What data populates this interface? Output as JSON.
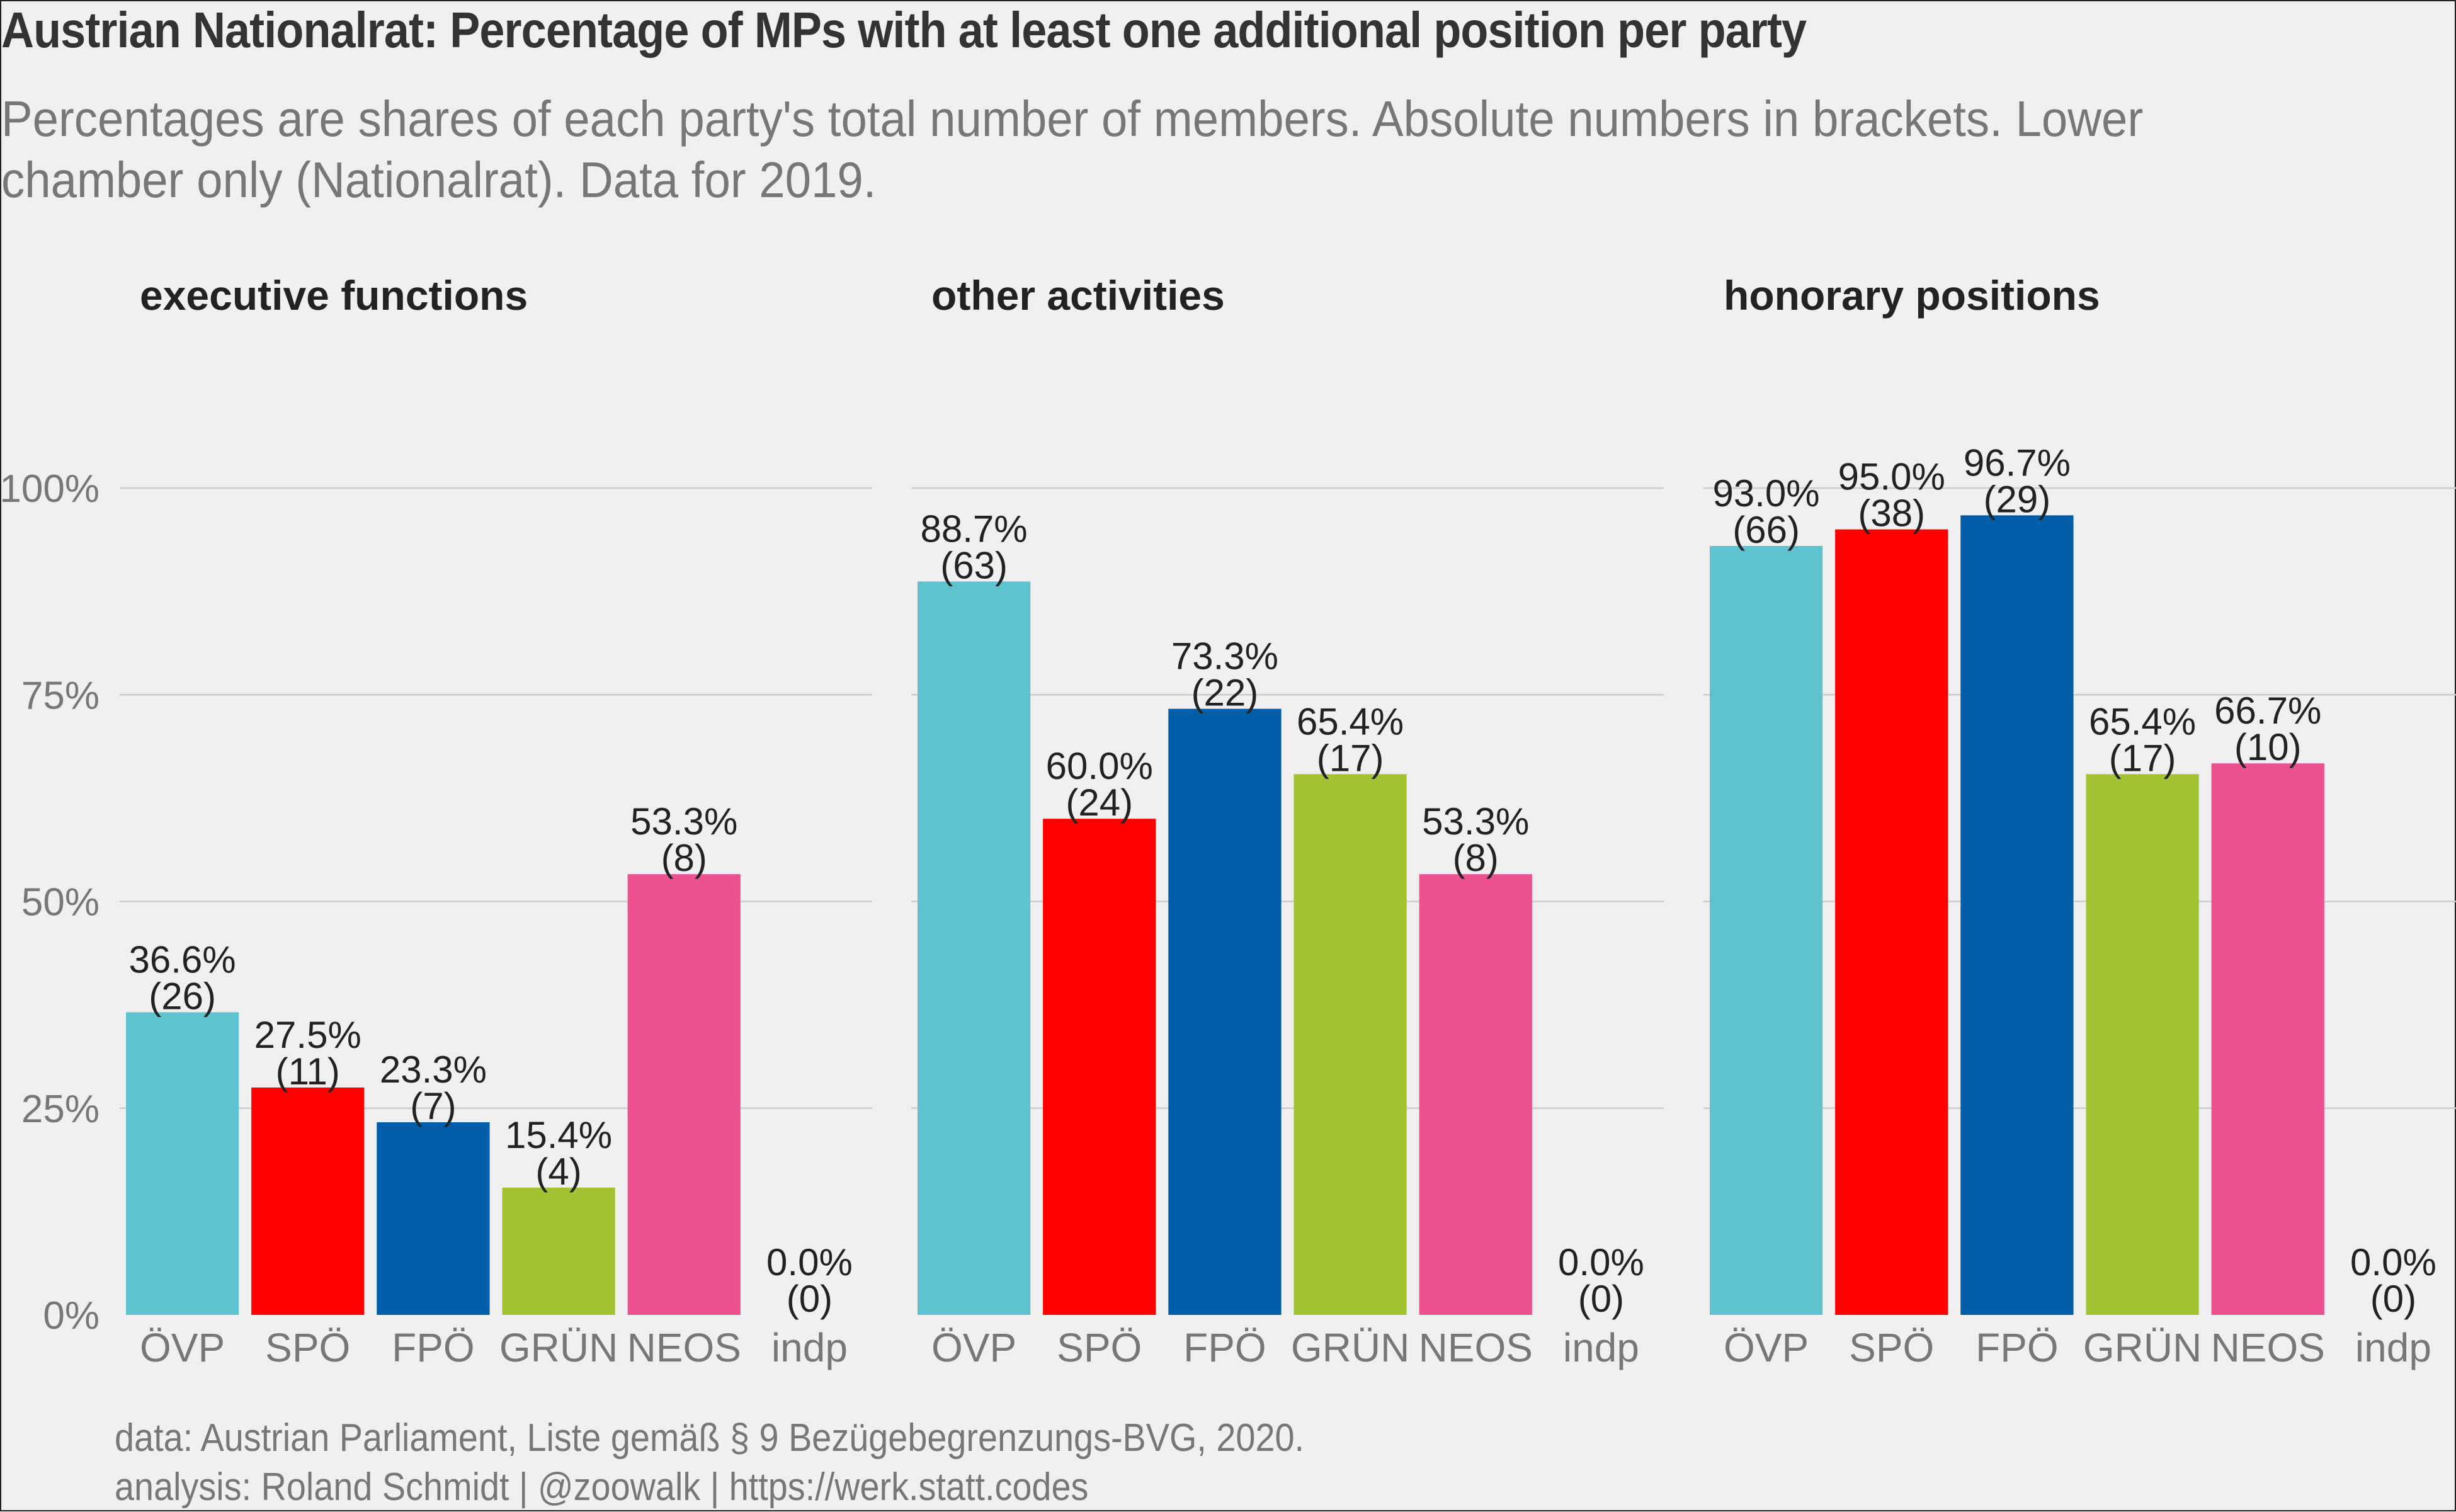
{
  "title": "Austrian Nationalrat: Percentage of MPs with at least one additional position per party",
  "subtitle": "Percentages are shares of each party's total number of members. Absolute numbers in brackets. Lower chamber only (Nationalrat). Data for 2019.",
  "caption": {
    "line1": "data: Austrian Parliament, Liste gemäß § 9 Bezügebegrenzungs-BVG, 2020.",
    "line2": "analysis: Roland Schmidt | @zoowalk | https://werk.statt.codes"
  },
  "colors": {
    "ÖVP": "#5fc2cf",
    "SPÖ": "#fe0000",
    "FPÖ": "#015da8",
    "GRÜN": "#a3c432",
    "NEOS": "#eb528f",
    "indp": "#888888"
  },
  "chart_data": {
    "type": "bar",
    "categories": [
      "ÖVP",
      "SPÖ",
      "FPÖ",
      "GRÜN",
      "NEOS",
      "indp"
    ],
    "ylim": [
      0,
      100
    ],
    "y_ticks": [
      {
        "value": 0,
        "label": "0%"
      },
      {
        "value": 25,
        "label": "25%"
      },
      {
        "value": 50,
        "label": "50%"
      },
      {
        "value": 75,
        "label": "75%"
      },
      {
        "value": 100,
        "label": "100%"
      }
    ],
    "grid": true,
    "legend": "none",
    "facets": [
      {
        "name": "executive functions",
        "values": [
          36.6,
          27.5,
          23.3,
          15.4,
          53.3,
          0.0
        ],
        "counts": [
          26,
          11,
          7,
          4,
          8,
          0
        ],
        "labels": [
          "36.6%",
          "27.5%",
          "23.3%",
          "15.4%",
          "53.3%",
          "0.0%"
        ],
        "count_labels": [
          "(26)",
          "(11)",
          "(7)",
          "(4)",
          "(8)",
          "(0)"
        ]
      },
      {
        "name": "other activities",
        "values": [
          88.7,
          60.0,
          73.3,
          65.4,
          53.3,
          0.0
        ],
        "counts": [
          63,
          24,
          22,
          17,
          8,
          0
        ],
        "labels": [
          "88.7%",
          "60.0%",
          "73.3%",
          "65.4%",
          "53.3%",
          "0.0%"
        ],
        "count_labels": [
          "(63)",
          "(24)",
          "(22)",
          "(17)",
          "(8)",
          "(0)"
        ]
      },
      {
        "name": "honorary positions",
        "values": [
          93.0,
          95.0,
          96.7,
          65.4,
          66.7,
          0.0
        ],
        "counts": [
          66,
          38,
          29,
          17,
          10,
          0
        ],
        "labels": [
          "93.0%",
          "95.0%",
          "96.7%",
          "65.4%",
          "66.7%",
          "0.0%"
        ],
        "count_labels": [
          "(66)",
          "(38)",
          "(29)",
          "(17)",
          "(10)",
          "(0)"
        ]
      }
    ]
  }
}
